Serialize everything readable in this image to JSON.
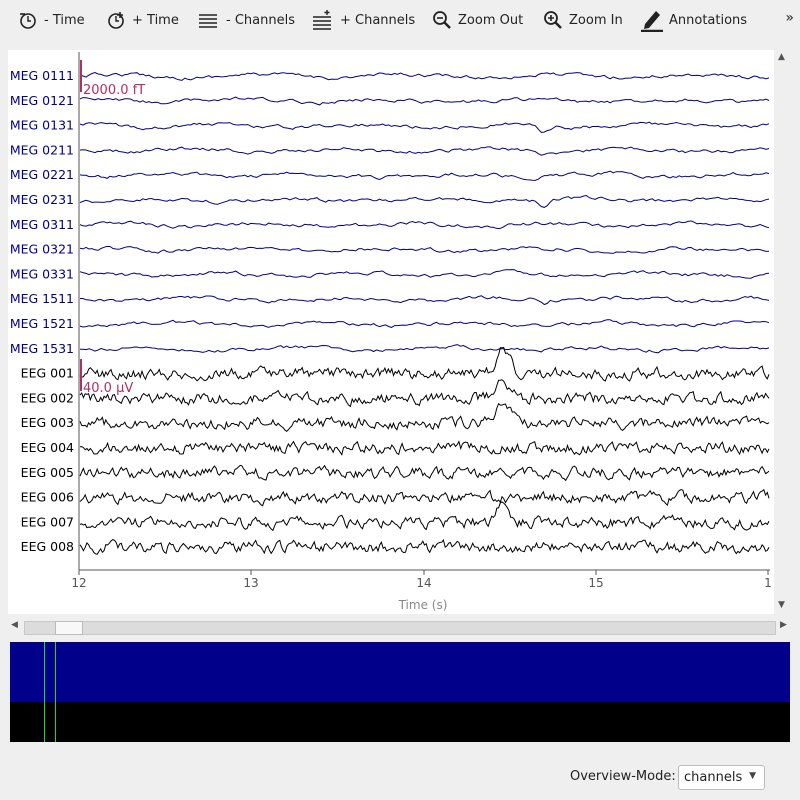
{
  "toolbar": {
    "items": [
      {
        "label": "- Time",
        "icon": "clock-minus-icon"
      },
      {
        "label": "+ Time",
        "icon": "clock-plus-icon"
      },
      {
        "label": "- Channels",
        "icon": "channels-minus-icon"
      },
      {
        "label": "+ Channels",
        "icon": "channels-plus-icon"
      },
      {
        "label": "Zoom Out",
        "icon": "zoom-out-icon"
      },
      {
        "label": "Zoom In",
        "icon": "zoom-in-icon"
      },
      {
        "label": "Annotations",
        "icon": "pen-icon"
      }
    ],
    "more": "»"
  },
  "plot": {
    "channels": [
      {
        "name": "MEG 0111",
        "type": "meg"
      },
      {
        "name": "MEG 0121",
        "type": "meg"
      },
      {
        "name": "MEG 0131",
        "type": "meg"
      },
      {
        "name": "MEG 0211",
        "type": "meg"
      },
      {
        "name": "MEG 0221",
        "type": "meg"
      },
      {
        "name": "MEG 0231",
        "type": "meg"
      },
      {
        "name": "MEG 0311",
        "type": "meg"
      },
      {
        "name": "MEG 0321",
        "type": "meg"
      },
      {
        "name": "MEG 0331",
        "type": "meg"
      },
      {
        "name": "MEG 1511",
        "type": "meg"
      },
      {
        "name": "MEG 1521",
        "type": "meg"
      },
      {
        "name": "MEG 1531",
        "type": "meg"
      },
      {
        "name": "EEG 001",
        "type": "eeg"
      },
      {
        "name": "EEG 002",
        "type": "eeg"
      },
      {
        "name": "EEG 003",
        "type": "eeg"
      },
      {
        "name": "EEG 004",
        "type": "eeg"
      },
      {
        "name": "EEG 005",
        "type": "eeg"
      },
      {
        "name": "EEG 006",
        "type": "eeg"
      },
      {
        "name": "EEG 007",
        "type": "eeg"
      },
      {
        "name": "EEG 008",
        "type": "eeg"
      }
    ],
    "x_ticks": [
      "12",
      "13",
      "14",
      "15",
      "1"
    ],
    "x_range": [
      12,
      16
    ],
    "xlabel": "Time (s)",
    "scale_meg": "2000.0 fT",
    "scale_eeg": "40.0 µV",
    "colors": {
      "meg": "#00008b",
      "eeg": "#000000",
      "scalebar": "#b03060",
      "axis_text": "#555555"
    }
  },
  "overview": {
    "mode_label": "Overview-Mode:",
    "mode_value": "channels",
    "colors": {
      "meg_band": "#00008b",
      "eeg_band": "#000000",
      "window": "#27d427"
    }
  }
}
